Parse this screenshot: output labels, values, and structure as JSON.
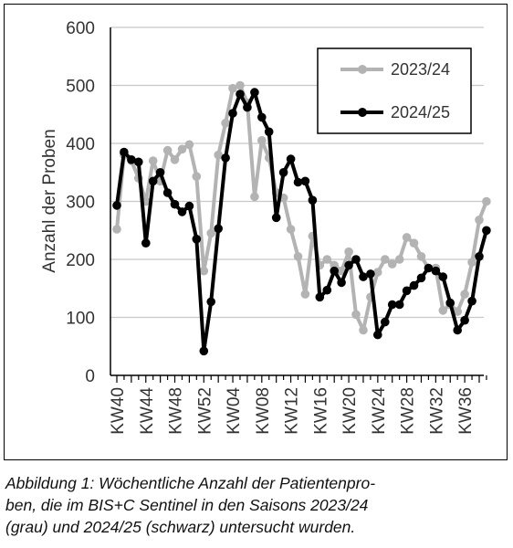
{
  "chart_data": {
    "type": "line",
    "title": "",
    "xlabel": "",
    "ylabel": "Anzahl der Proben",
    "ylim": [
      0,
      600
    ],
    "yticks": [
      0,
      100,
      200,
      300,
      400,
      500,
      600
    ],
    "grid": "horizontal",
    "legend_position": "top-right",
    "x": [
      "KW40",
      "KW41",
      "KW42",
      "KW43",
      "KW44",
      "KW45",
      "KW46",
      "KW47",
      "KW48",
      "KW49",
      "KW50",
      "KW51",
      "KW52",
      "KW01",
      "KW02",
      "KW03",
      "KW04",
      "KW05",
      "KW06",
      "KW07",
      "KW08",
      "KW09",
      "KW10",
      "KW11",
      "KW12",
      "KW13",
      "KW14",
      "KW15",
      "KW16",
      "KW17",
      "KW18",
      "KW19",
      "KW20",
      "KW21",
      "KW22",
      "KW23",
      "KW24",
      "KW25",
      "KW26",
      "KW27",
      "KW28",
      "KW29",
      "KW30",
      "KW31",
      "KW32",
      "KW33",
      "KW34",
      "KW35",
      "KW36",
      "KW37",
      "KW38",
      "KW39"
    ],
    "xtick_labels": [
      "KW40",
      "KW44",
      "KW48",
      "KW52",
      "KW04",
      "KW08",
      "KW12",
      "KW16",
      "KW20",
      "KW24",
      "KW28",
      "KW32",
      "KW36"
    ],
    "series": [
      {
        "name": "2023/24",
        "color": "#b3b3b3",
        "values": [
          252,
          380,
          370,
          340,
          300,
          370,
          335,
          388,
          372,
          390,
          398,
          343,
          180,
          245,
          380,
          435,
          495,
          500,
          470,
          308,
          405,
          375,
          315,
          306,
          252,
          205,
          140,
          240,
          190,
          200,
          190,
          180,
          213,
          105,
          78,
          135,
          178,
          200,
          192,
          200,
          238,
          228,
          205,
          185,
          185,
          112,
          122,
          110,
          140,
          195,
          268,
          300
        ]
      },
      {
        "name": "2024/25",
        "color": "#000000",
        "values": [
          293,
          385,
          372,
          368,
          228,
          335,
          350,
          315,
          295,
          282,
          292,
          235,
          42,
          127,
          253,
          375,
          452,
          485,
          462,
          488,
          445,
          420,
          272,
          350,
          373,
          333,
          335,
          302,
          135,
          147,
          180,
          160,
          190,
          200,
          170,
          175,
          70,
          92,
          122,
          122,
          146,
          155,
          168,
          185,
          180,
          170,
          125,
          78,
          95,
          128,
          205,
          250
        ]
      }
    ],
    "caption": [
      "Abbildung 1: Wöchentliche Anzahl der Patientenpro-",
      "ben, die im BIS+C Sentinel in den Saisons 2023/24",
      "(grau) und 2024/25 (schwarz) untersucht wurden."
    ]
  }
}
